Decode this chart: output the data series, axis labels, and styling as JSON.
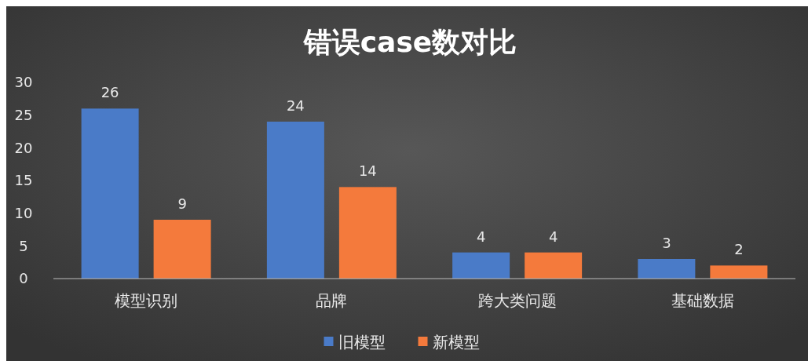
{
  "chart_data": {
    "type": "bar",
    "title": "错误case数对比",
    "categories": [
      "模型识别",
      "品牌",
      "跨大类问题",
      "基础数据"
    ],
    "series": [
      {
        "name": "旧模型",
        "color": "#4a7bc8",
        "values": [
          26,
          24,
          4,
          3
        ]
      },
      {
        "name": "新模型",
        "color": "#f47a3c",
        "values": [
          9,
          14,
          4,
          2
        ]
      }
    ],
    "ylim": [
      0,
      30
    ],
    "yticks": [
      0,
      5,
      10,
      15,
      20,
      25,
      30
    ],
    "grid": false,
    "legend": "bottom",
    "data_labels": true
  }
}
